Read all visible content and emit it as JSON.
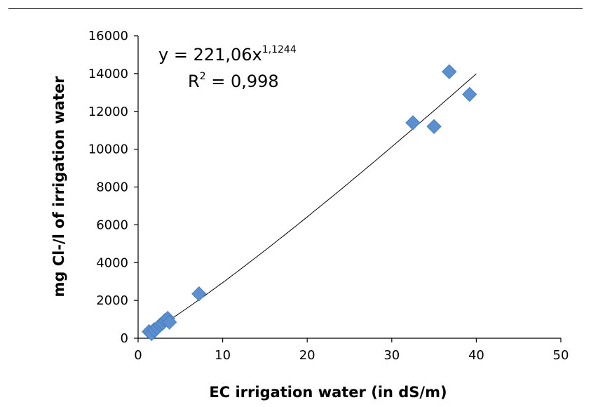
{
  "chart_data": {
    "type": "scatter",
    "title": "",
    "xlabel": "EC irrigation water (in dS/m)",
    "ylabel": "mg Cl-/l of irrigation water",
    "xlim": [
      0,
      50
    ],
    "ylim": [
      0,
      16000
    ],
    "x_ticks": [
      0,
      10,
      20,
      30,
      40,
      50
    ],
    "y_ticks": [
      0,
      2000,
      4000,
      6000,
      8000,
      10000,
      12000,
      14000,
      16000
    ],
    "grid": false,
    "marker": "diamond",
    "colors": {
      "marker": "#5b8fd0",
      "marker_edge": "#4a7fc0",
      "trendline": "#000000",
      "axis": "#000000"
    },
    "series": [
      {
        "x": [
          1.3,
          1.6,
          1.9,
          2.3,
          2.6,
          2.9,
          3.2,
          3.5,
          3.7,
          7.2,
          32.5,
          35.0,
          36.8,
          39.2
        ],
        "y": [
          350,
          250,
          450,
          550,
          700,
          800,
          950,
          1050,
          850,
          2350,
          11400,
          11200,
          14100,
          12900
        ]
      }
    ],
    "trendline": {
      "type": "power",
      "a": 221.06,
      "b": 1.1244,
      "x_range": [
        1.6,
        40.0
      ],
      "equation_prefix": "y = 221,06x",
      "equation_exponent": "1,1244",
      "r2_prefix": "R",
      "r2_exponent": "2",
      "r2_value": " = 0,998"
    }
  }
}
